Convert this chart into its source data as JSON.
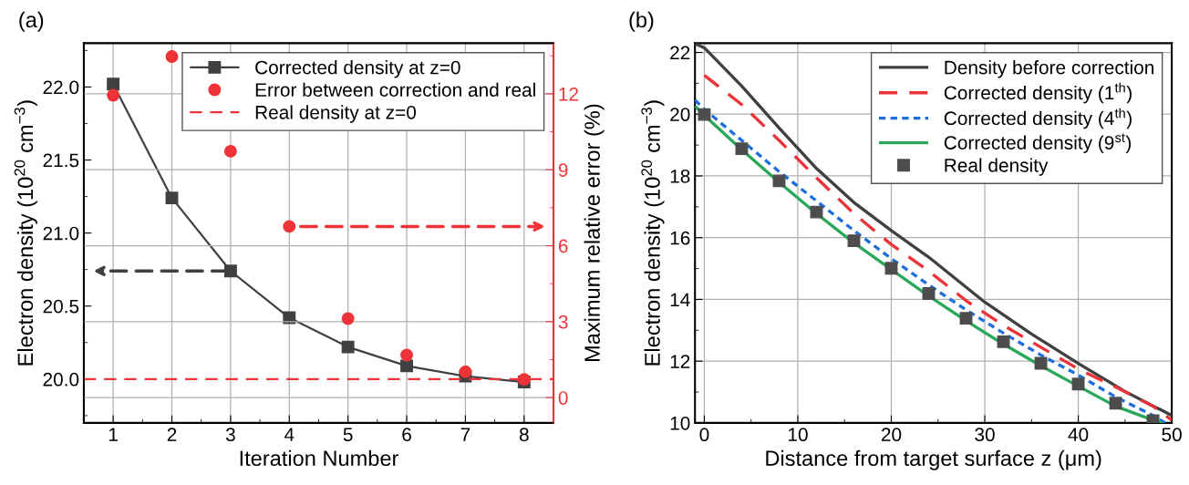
{
  "chart_data": [
    {
      "type": "line",
      "title": "(a)",
      "xlabel": "Iteration Number",
      "ylabel": "Electron density (10$^{20}$ cm$^{−3}$)",
      "y2label": "Maximum relative error (%)",
      "x": [
        1,
        2,
        3,
        4,
        5,
        6,
        7,
        8
      ],
      "xlim": [
        0.5,
        8.5
      ],
      "xticks": [
        1,
        2,
        3,
        4,
        5,
        6,
        7,
        8
      ],
      "ylim": [
        19.7,
        22.3
      ],
      "yticks": [
        {
          "value": 20,
          "label": "20.0"
        },
        {
          "value": 20.5,
          "label": "20.5"
        },
        {
          "value": 21,
          "label": "21.0"
        },
        {
          "value": 21.5,
          "label": "21.5"
        },
        {
          "value": 22,
          "label": "22.0"
        }
      ],
      "y2lim": [
        -1,
        14
      ],
      "y2ticks": [
        0,
        3,
        6,
        9,
        12
      ],
      "grid": true,
      "legend": "top right",
      "series": [
        {
          "name": "Corrected density at z=0",
          "color": "#404040",
          "marker": "square",
          "line_style": "solid",
          "values": [
            22.02,
            21.24,
            20.74,
            20.42,
            20.22,
            20.09,
            20.02,
            19.98
          ]
        },
        {
          "name": "Error between correction and real",
          "type": "scatter",
          "axis": "y2",
          "color": "#ee3338",
          "marker": "circle",
          "values": [
            11.94,
            13.47,
            9.73,
            6.76,
            3.12,
            1.68,
            1.02,
            0.72
          ]
        },
        {
          "name": "Real density at z=0",
          "color": "#ee3338",
          "line_style": "dashed",
          "x": [
            0.5,
            8.5
          ],
          "values": [
            20.0,
            20.0
          ]
        }
      ]
    },
    {
      "type": "line",
      "title": "(b)",
      "xlabel": "Distance from target surface z (μm)",
      "ylabel": "Electron density (10$^{20}$ cm$^{−3}$)",
      "xlim": [
        -1,
        50
      ],
      "xticks": [
        0,
        10,
        20,
        30,
        40,
        50
      ],
      "ylim": [
        10,
        22.3
      ],
      "yticks": [
        10,
        12,
        14,
        16,
        18,
        20,
        22
      ],
      "grid": true,
      "legend": "top right",
      "series": [
        {
          "name": "Density before correction",
          "color": "#404040",
          "line_style": "solid",
          "x": [
            -1,
            0,
            4,
            8,
            12,
            16,
            20,
            24,
            30,
            35,
            40,
            45,
            50
          ],
          "values": [
            22.29,
            22.15,
            20.91,
            19.55,
            18.24,
            17.14,
            16.23,
            15.37,
            13.91,
            12.88,
            11.93,
            11.02,
            10.24
          ]
        },
        {
          "name": "Corrected density (1$^{th}$)",
          "color": "#ee3338",
          "line_style": "dashed",
          "x": [
            0,
            4,
            8,
            12,
            16,
            20,
            24,
            28,
            32,
            36,
            40,
            44,
            48,
            50
          ],
          "values": [
            21.26,
            20.31,
            19.15,
            17.94,
            16.78,
            15.78,
            14.92,
            13.96,
            13.16,
            12.45,
            11.75,
            11.16,
            10.54,
            10.09
          ]
        },
        {
          "name": "Corrected density (4$^{th}$)",
          "color": "#1f6fdb",
          "line_style": "dotted",
          "x": [
            -1,
            0,
            4,
            8,
            12,
            16,
            20,
            24,
            28,
            32,
            36,
            40,
            44,
            48,
            49.3
          ],
          "values": [
            20.46,
            20.16,
            19.15,
            18.14,
            17.19,
            16.23,
            15.32,
            14.47,
            13.66,
            12.91,
            12.2,
            11.55,
            10.84,
            10.24,
            10.0
          ]
        },
        {
          "name": "Corrected density (9$^{st}$)",
          "color": "#2aa85a",
          "line_style": "solid",
          "x": [
            -1,
            0,
            4,
            8,
            12,
            16,
            20,
            24,
            28,
            32,
            36,
            40,
            44,
            48,
            49
          ],
          "values": [
            20.26,
            19.96,
            18.85,
            17.79,
            16.78,
            15.83,
            14.97,
            14.11,
            13.31,
            12.55,
            11.85,
            11.19,
            10.54,
            10.09,
            10.0
          ]
        },
        {
          "name": "Real density",
          "type": "scatter",
          "color": "#4d4d4d",
          "marker": "square",
          "x": [
            0,
            4,
            8,
            12,
            16,
            20,
            24,
            28,
            32,
            36,
            40,
            44,
            48
          ],
          "values": [
            19.99,
            18.88,
            17.84,
            16.83,
            15.9,
            15.01,
            14.19,
            13.39,
            12.63,
            11.93,
            11.26,
            10.64,
            10.07
          ]
        }
      ]
    }
  ]
}
